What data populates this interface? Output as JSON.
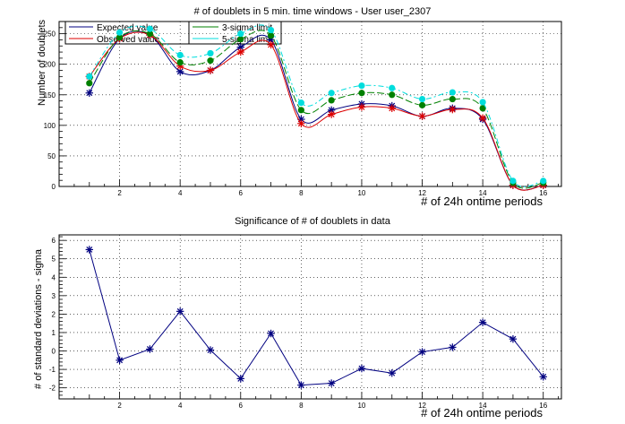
{
  "window": {
    "background": "#ffffff"
  },
  "chart_data": [
    {
      "type": "line",
      "title": "# of doublets in 5 min. time windows - User user_2307",
      "xlabel": "# of 24h ontime periods",
      "ylabel": "Number of doublets",
      "xlim": [
        0,
        16.6
      ],
      "ylim": [
        0,
        270
      ],
      "grid": true,
      "legend_placement": "top-left",
      "x": [
        1,
        2,
        3,
        4,
        5,
        6,
        7,
        8,
        9,
        10,
        11,
        12,
        13,
        14,
        15,
        16
      ],
      "series": [
        {
          "name": "Expected value",
          "color": "#000080",
          "marker": "asterisk",
          "values": [
            153,
            242,
            248,
            188,
            190,
            228,
            240,
            110,
            125,
            135,
            132,
            115,
            128,
            110,
            2,
            2
          ]
        },
        {
          "name": "Observed value",
          "color": "#dd0000",
          "marker": "asterisk",
          "values": [
            180,
            242,
            248,
            197,
            190,
            220,
            232,
            103,
            118,
            130,
            128,
            115,
            126,
            112,
            2,
            2
          ]
        },
        {
          "name": "3-sigma limit",
          "color": "#008000",
          "marker": "circle",
          "values": [
            169,
            244,
            250,
            203,
            206,
            241,
            247,
            125,
            141,
            153,
            150,
            133,
            143,
            128,
            6,
            6
          ]
        },
        {
          "name": "5-sigma limit",
          "color": "#00dddd",
          "marker": "circle",
          "values": [
            180,
            252,
            258,
            215,
            218,
            250,
            256,
            137,
            153,
            165,
            161,
            143,
            154,
            138,
            9,
            9
          ]
        }
      ],
      "x_ticks": [
        2,
        4,
        6,
        8,
        10,
        12,
        14,
        16
      ],
      "y_ticks": [
        0,
        50,
        100,
        150,
        200,
        250
      ]
    },
    {
      "type": "line",
      "title": "Significance of # of doublets in data",
      "xlabel": "# of 24h ontime periods",
      "ylabel": "# of standard deviations - sigma",
      "xlim": [
        0,
        16.6
      ],
      "ylim": [
        -2.6,
        6.3
      ],
      "grid": true,
      "x": [
        1,
        2,
        3,
        4,
        5,
        6,
        7,
        8,
        9,
        10,
        11,
        12,
        13,
        14,
        15,
        16
      ],
      "series": [
        {
          "color": "#000080",
          "marker": "asterisk",
          "values": [
            5.5,
            -0.5,
            0.1,
            2.15,
            0.05,
            -1.5,
            0.95,
            -1.85,
            -1.75,
            -0.95,
            -1.2,
            -0.05,
            0.2,
            1.55,
            0.65,
            -1.4
          ]
        }
      ],
      "x_ticks": [
        2,
        4,
        6,
        8,
        10,
        12,
        14,
        16
      ],
      "y_ticks": [
        -2,
        -1,
        0,
        1,
        2,
        3,
        4,
        5,
        6
      ]
    }
  ]
}
